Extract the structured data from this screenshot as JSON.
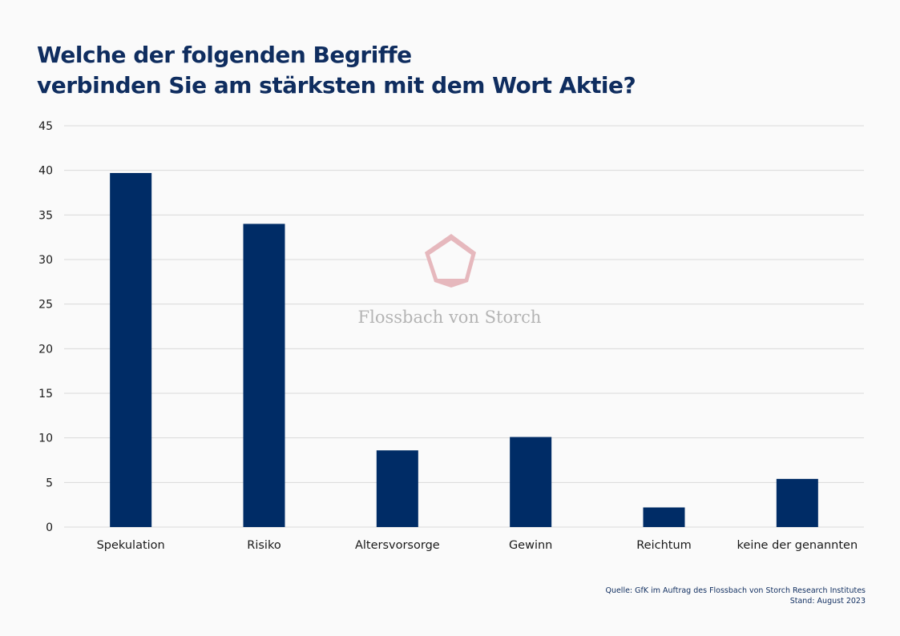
{
  "chart_data": {
    "type": "bar",
    "title_lines": [
      "Welche der folgenden Begriffe",
      "verbinden Sie am stärksten mit dem Wort Aktie?"
    ],
    "categories": [
      "Spekulation",
      "Risiko",
      "Altersvorsorge",
      "Gewinn",
      "Reichtum",
      "keine der genannten"
    ],
    "values": [
      39.7,
      34.0,
      8.6,
      10.1,
      2.2,
      5.4
    ],
    "ylim": [
      0,
      45
    ],
    "yticks": [
      0,
      5,
      10,
      15,
      20,
      25,
      30,
      35,
      40,
      45
    ],
    "xlabel": "",
    "ylabel": "",
    "grid": true,
    "bar_color": "#002c66"
  },
  "watermark": "Flossbach von Storch",
  "source": {
    "line1": "Quelle: GfK im Auftrag des Flossbach von Storch Research Institutes",
    "line2": "Stand: August 2023"
  }
}
